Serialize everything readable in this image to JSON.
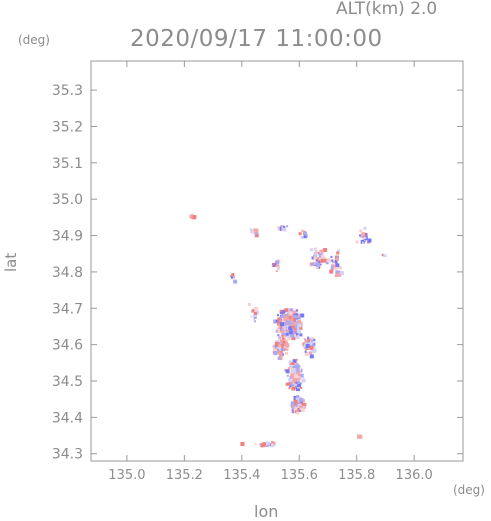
{
  "header": {
    "alt_label": "ALT(km) 2.0",
    "datetime": "2020/09/17 11:00:00"
  },
  "chart_data": {
    "type": "scatter",
    "title": "2020/09/17 11:00:00",
    "xlabel": "lon",
    "ylabel": "lat",
    "x_unit": "(deg)",
    "y_unit": "(deg)",
    "xlim": [
      134.875,
      136.17
    ],
    "ylim": [
      34.28,
      35.38
    ],
    "x_ticks": [
      135.0,
      135.2,
      135.4,
      135.6,
      135.8,
      136.0
    ],
    "x_tick_labels": [
      "135.0",
      "135.2",
      "135.4",
      "135.6",
      "135.8",
      "136.0"
    ],
    "y_ticks": [
      34.3,
      34.4,
      34.5,
      34.6,
      34.7,
      34.8,
      34.9,
      35.0,
      35.1,
      35.2,
      35.3
    ],
    "y_tick_labels": [
      "34.3",
      "34.4",
      "34.5",
      "34.6",
      "34.7",
      "34.8",
      "34.9",
      "35.0",
      "35.1",
      "35.2",
      "35.3"
    ],
    "grid": false,
    "colors": {
      "positive": "#f08080",
      "negative": "#7878f0",
      "axis": "#9a9a9a"
    },
    "clusters": [
      {
        "lon": 135.223,
        "lat": 34.955,
        "n": 6,
        "dlon": 0.012,
        "dlat": 0.01
      },
      {
        "lon": 135.44,
        "lat": 34.915,
        "n": 14,
        "dlon": 0.025,
        "dlat": 0.012
      },
      {
        "lon": 135.54,
        "lat": 34.925,
        "n": 10,
        "dlon": 0.022,
        "dlat": 0.01
      },
      {
        "lon": 135.61,
        "lat": 34.905,
        "n": 8,
        "dlon": 0.018,
        "dlat": 0.015
      },
      {
        "lon": 135.66,
        "lat": 34.84,
        "n": 40,
        "dlon": 0.035,
        "dlat": 0.04
      },
      {
        "lon": 135.72,
        "lat": 34.83,
        "n": 28,
        "dlon": 0.028,
        "dlat": 0.05
      },
      {
        "lon": 135.82,
        "lat": 34.9,
        "n": 24,
        "dlon": 0.03,
        "dlat": 0.03
      },
      {
        "lon": 135.89,
        "lat": 34.85,
        "n": 3,
        "dlon": 0.006,
        "dlat": 0.004
      },
      {
        "lon": 135.515,
        "lat": 34.82,
        "n": 10,
        "dlon": 0.02,
        "dlat": 0.03
      },
      {
        "lon": 135.365,
        "lat": 34.79,
        "n": 6,
        "dlon": 0.008,
        "dlat": 0.02
      },
      {
        "lon": 135.56,
        "lat": 34.66,
        "n": 330,
        "dlon": 0.06,
        "dlat": 0.05
      },
      {
        "lon": 135.53,
        "lat": 34.6,
        "n": 80,
        "dlon": 0.03,
        "dlat": 0.04
      },
      {
        "lon": 135.63,
        "lat": 34.6,
        "n": 60,
        "dlon": 0.03,
        "dlat": 0.04
      },
      {
        "lon": 135.58,
        "lat": 34.52,
        "n": 150,
        "dlon": 0.035,
        "dlat": 0.05
      },
      {
        "lon": 135.59,
        "lat": 34.44,
        "n": 90,
        "dlon": 0.03,
        "dlat": 0.03
      },
      {
        "lon": 135.48,
        "lat": 34.33,
        "n": 18,
        "dlon": 0.05,
        "dlat": 0.008
      },
      {
        "lon": 135.395,
        "lat": 34.332,
        "n": 5,
        "dlon": 0.006,
        "dlat": 0.004
      },
      {
        "lon": 135.8,
        "lat": 34.352,
        "n": 6,
        "dlon": 0.008,
        "dlat": 0.004
      },
      {
        "lon": 135.44,
        "lat": 34.7,
        "n": 12,
        "dlon": 0.02,
        "dlat": 0.06
      }
    ]
  }
}
